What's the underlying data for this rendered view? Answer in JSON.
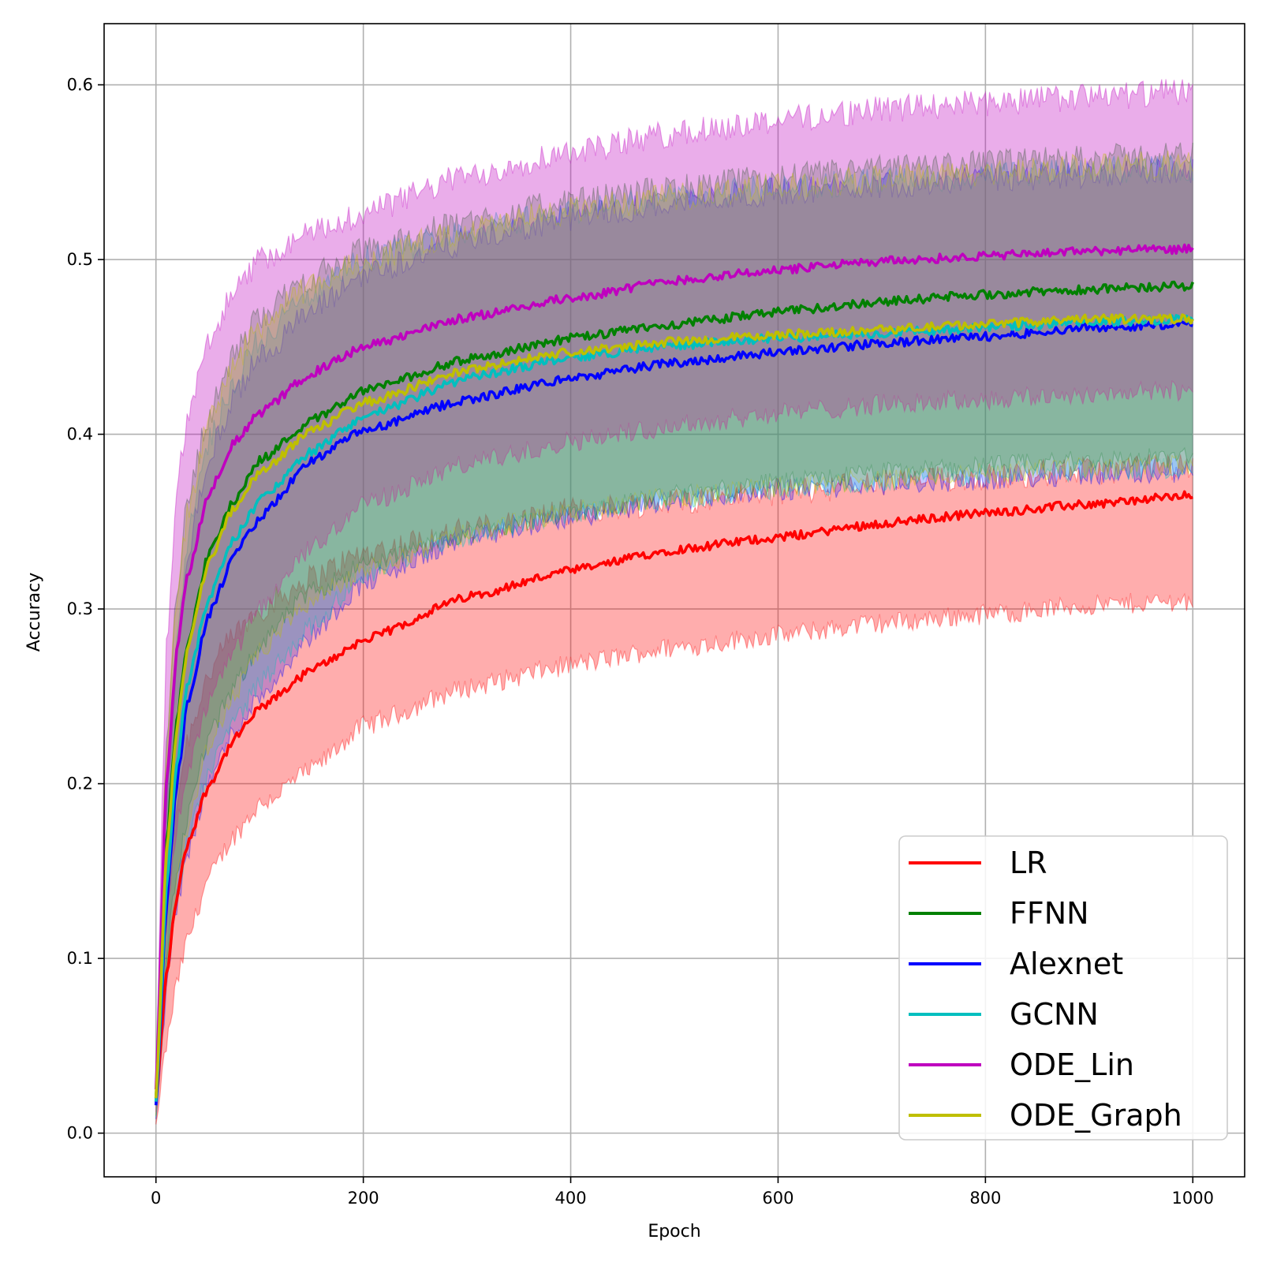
{
  "chart_data": {
    "type": "line",
    "title": "",
    "xlabel": "Epoch",
    "ylabel": "Accuracy",
    "xlim": [
      -50,
      1050
    ],
    "ylim": [
      -0.025,
      0.635
    ],
    "xticks": [
      0,
      200,
      400,
      600,
      800,
      1000
    ],
    "xtick_labels": [
      "0",
      "200",
      "400",
      "600",
      "800",
      "1000"
    ],
    "yticks": [
      0.0,
      0.1,
      0.2,
      0.3,
      0.4,
      0.5,
      0.6
    ],
    "ytick_labels": [
      "0.0",
      "0.1",
      "0.2",
      "0.3",
      "0.4",
      "0.5",
      "0.6"
    ],
    "grid": true,
    "legend_position": "bottom-right",
    "x": [
      0,
      10,
      20,
      30,
      50,
      75,
      100,
      150,
      200,
      300,
      400,
      500,
      600,
      700,
      800,
      900,
      1000
    ],
    "series": [
      {
        "name": "LR",
        "color": "#ff0000",
        "band_color": "#ff0000",
        "band_opacity": 0.32,
        "values": [
          0.018,
          0.09,
          0.135,
          0.165,
          0.198,
          0.225,
          0.243,
          0.265,
          0.282,
          0.307,
          0.322,
          0.334,
          0.341,
          0.349,
          0.355,
          0.36,
          0.365
        ],
        "lower": [
          0.005,
          0.05,
          0.085,
          0.11,
          0.145,
          0.17,
          0.188,
          0.208,
          0.233,
          0.255,
          0.268,
          0.278,
          0.285,
          0.292,
          0.297,
          0.302,
          0.305
        ],
        "upper": [
          0.03,
          0.135,
          0.19,
          0.225,
          0.262,
          0.285,
          0.3,
          0.318,
          0.332,
          0.345,
          0.356,
          0.362,
          0.367,
          0.372,
          0.376,
          0.379,
          0.382
        ]
      },
      {
        "name": "FFNN",
        "color": "#008000",
        "band_color": "#008000",
        "band_opacity": 0.22,
        "values": [
          0.02,
          0.165,
          0.235,
          0.28,
          0.33,
          0.362,
          0.385,
          0.408,
          0.425,
          0.443,
          0.455,
          0.463,
          0.47,
          0.476,
          0.48,
          0.483,
          0.485
        ],
        "lower": [
          0.01,
          0.1,
          0.15,
          0.18,
          0.225,
          0.255,
          0.28,
          0.31,
          0.325,
          0.343,
          0.355,
          0.365,
          0.372,
          0.378,
          0.382,
          0.385,
          0.387
        ],
        "upper": [
          0.03,
          0.225,
          0.31,
          0.36,
          0.41,
          0.445,
          0.468,
          0.49,
          0.505,
          0.522,
          0.533,
          0.541,
          0.547,
          0.552,
          0.555,
          0.558,
          0.56
        ]
      },
      {
        "name": "Alexnet",
        "color": "#0000ff",
        "band_color": "#0000ff",
        "band_opacity": 0.22,
        "values": [
          0.016,
          0.13,
          0.2,
          0.245,
          0.295,
          0.33,
          0.352,
          0.385,
          0.402,
          0.42,
          0.432,
          0.441,
          0.447,
          0.452,
          0.456,
          0.461,
          0.463
        ],
        "lower": [
          0.008,
          0.08,
          0.13,
          0.16,
          0.2,
          0.23,
          0.25,
          0.285,
          0.315,
          0.34,
          0.352,
          0.362,
          0.368,
          0.371,
          0.374,
          0.377,
          0.378
        ],
        "upper": [
          0.025,
          0.185,
          0.27,
          0.33,
          0.385,
          0.42,
          0.445,
          0.47,
          0.492,
          0.511,
          0.524,
          0.533,
          0.539,
          0.543,
          0.546,
          0.549,
          0.551
        ]
      },
      {
        "name": "GCNN",
        "color": "#00bfbf",
        "band_color": "#00bfbf",
        "band_opacity": 0.22,
        "values": [
          0.018,
          0.14,
          0.21,
          0.255,
          0.305,
          0.34,
          0.362,
          0.39,
          0.41,
          0.432,
          0.444,
          0.451,
          0.455,
          0.458,
          0.461,
          0.464,
          0.466
        ],
        "lower": [
          0.009,
          0.085,
          0.135,
          0.165,
          0.205,
          0.235,
          0.258,
          0.29,
          0.32,
          0.342,
          0.355,
          0.363,
          0.369,
          0.373,
          0.377,
          0.379,
          0.381
        ],
        "upper": [
          0.028,
          0.195,
          0.28,
          0.34,
          0.395,
          0.43,
          0.455,
          0.48,
          0.5,
          0.517,
          0.528,
          0.536,
          0.541,
          0.545,
          0.548,
          0.551,
          0.553
        ]
      },
      {
        "name": "ODE_Lin",
        "color": "#bf00bf",
        "band_color": "#bf00bf",
        "band_opacity": 0.32,
        "values": [
          0.025,
          0.2,
          0.275,
          0.318,
          0.365,
          0.395,
          0.412,
          0.435,
          0.45,
          0.467,
          0.478,
          0.488,
          0.494,
          0.499,
          0.502,
          0.505,
          0.506
        ],
        "lower": [
          0.012,
          0.12,
          0.175,
          0.205,
          0.245,
          0.275,
          0.3,
          0.335,
          0.36,
          0.383,
          0.396,
          0.405,
          0.412,
          0.417,
          0.42,
          0.423,
          0.425
        ],
        "upper": [
          0.04,
          0.275,
          0.37,
          0.41,
          0.455,
          0.48,
          0.5,
          0.515,
          0.527,
          0.548,
          0.562,
          0.572,
          0.58,
          0.586,
          0.59,
          0.593,
          0.596
        ]
      },
      {
        "name": "ODE_Graph",
        "color": "#bfbf00",
        "band_color": "#bfbf00",
        "band_opacity": 0.22,
        "values": [
          0.02,
          0.16,
          0.23,
          0.275,
          0.325,
          0.358,
          0.378,
          0.402,
          0.418,
          0.437,
          0.447,
          0.453,
          0.457,
          0.46,
          0.463,
          0.466,
          0.466
        ],
        "lower": [
          0.01,
          0.095,
          0.145,
          0.175,
          0.22,
          0.25,
          0.275,
          0.305,
          0.322,
          0.343,
          0.356,
          0.364,
          0.37,
          0.374,
          0.378,
          0.381,
          0.383
        ],
        "upper": [
          0.03,
          0.22,
          0.305,
          0.355,
          0.405,
          0.44,
          0.462,
          0.485,
          0.5,
          0.517,
          0.528,
          0.536,
          0.542,
          0.546,
          0.55,
          0.553,
          0.555
        ]
      }
    ]
  }
}
